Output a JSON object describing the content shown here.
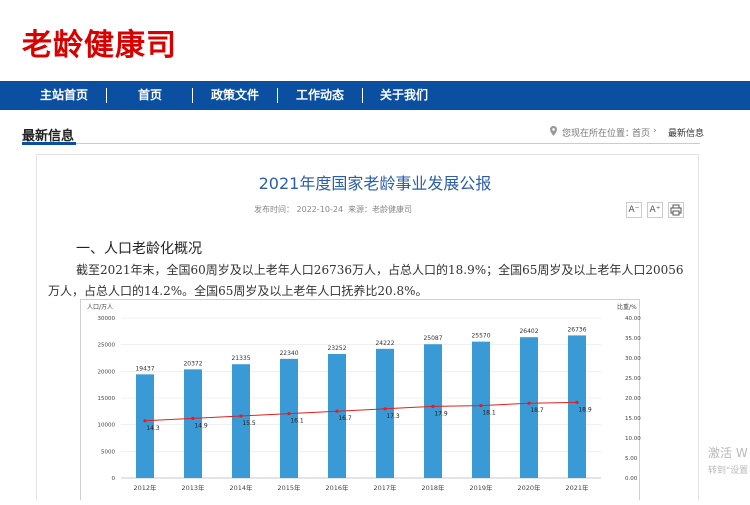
{
  "header": {
    "logo": "老龄健康司",
    "brand_color": "#d90000"
  },
  "nav": {
    "items": [
      "主站首页",
      "首页",
      "政策文件",
      "工作动态",
      "关于我们"
    ],
    "bg_color": "#0b4fa0"
  },
  "section": {
    "title": "最新信息"
  },
  "breadcrumb": {
    "prefix": "您现在所在位置：",
    "home": "首页",
    "current": "最新信息"
  },
  "article": {
    "title": "2021年度国家老龄事业发展公报",
    "meta_date": "发布时间：  2022-10-24",
    "meta_source": "来源：老龄健康司",
    "font_small": "A⁻",
    "font_large": "A⁺",
    "print_icon": "printer-icon",
    "heading": "一、人口老龄化概况",
    "paragraph": "截至2021年末，全国60周岁及以上老年人口26736万人，占总人口的18.9%；全国65周岁及以上老年人口20056万人，占总人口的14.2%。全国65周岁及以上老年人口抚养比20.8%。"
  },
  "chart_data": {
    "type": "bar",
    "left_axis_label": "人口/万人",
    "right_axis_label": "比重/%",
    "categories": [
      "2012年",
      "2013年",
      "2014年",
      "2015年",
      "2016年",
      "2017年",
      "2018年",
      "2019年",
      "2020年",
      "2021年"
    ],
    "series": [
      {
        "kind": "bar",
        "values": [
          19437,
          20372,
          21335,
          22340,
          23252,
          24222,
          25087,
          25570,
          26402,
          26736
        ],
        "color": "#3a9ad6"
      },
      {
        "kind": "line",
        "axis": "right",
        "values": [
          14.3,
          14.9,
          15.5,
          16.1,
          16.7,
          17.3,
          17.9,
          18.1,
          18.7,
          18.9
        ],
        "color": "#e02020"
      }
    ],
    "left_ticks": [
      "0",
      "5000",
      "10000",
      "15000",
      "20000",
      "25000",
      "30000"
    ],
    "right_ticks": [
      "0.00",
      "5.00",
      "10.00",
      "15.00",
      "20.00",
      "25.00",
      "30.00",
      "35.00",
      "40.00"
    ],
    "ylim": [
      0,
      30000
    ],
    "y2lim": [
      0,
      40
    ],
    "grid": true
  },
  "watermark": {
    "line1": "激活 W",
    "line2": "转到\"设置"
  }
}
